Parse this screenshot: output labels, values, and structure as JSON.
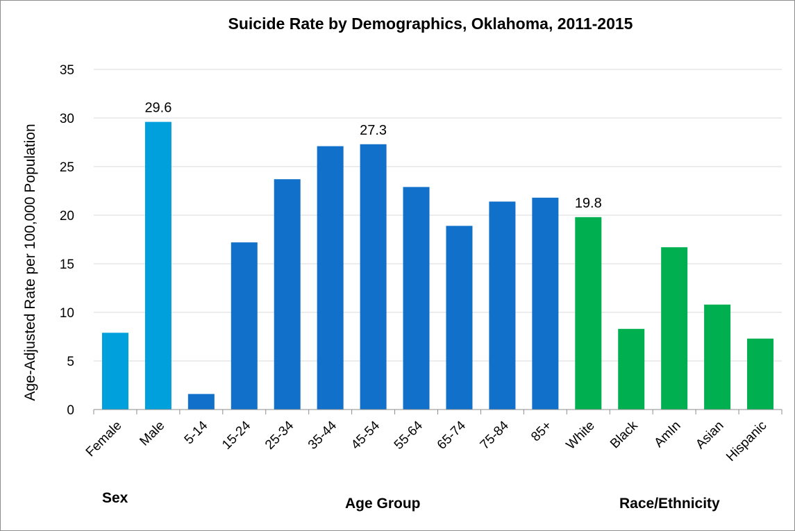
{
  "chart_data": {
    "type": "bar",
    "title": "Suicide Rate by Demographics, Oklahoma, 2011-2015",
    "ylabel": "Age-Adjusted Rate per 100,000 Population",
    "ylim": [
      0,
      35
    ],
    "yticks": [
      "0",
      "5",
      "10",
      "15",
      "20",
      "25",
      "30",
      "35"
    ],
    "grid": true,
    "categories": [
      "Female",
      "Male",
      "5-14",
      "15-24",
      "25-34",
      "35-44",
      "45-54",
      "55-64",
      "65-74",
      "75-84",
      "85+",
      "White",
      "Black",
      "AmIn",
      "Asian",
      "Hispanic"
    ],
    "values": [
      7.9,
      29.6,
      1.6,
      17.2,
      23.7,
      27.1,
      27.3,
      22.9,
      18.9,
      21.4,
      21.8,
      19.8,
      8.3,
      16.7,
      10.8,
      7.3
    ],
    "data_labels": [
      {
        "category": "Male",
        "text": "29.6"
      },
      {
        "category": "45-54",
        "text": "27.3"
      },
      {
        "category": "White",
        "text": "19.8"
      }
    ],
    "groups": [
      {
        "name": "Sex",
        "categories": [
          "Female",
          "Male"
        ],
        "color": "#00A0DC"
      },
      {
        "name": "Age Group",
        "categories": [
          "5-14",
          "15-24",
          "25-34",
          "35-44",
          "45-54",
          "55-64",
          "65-74",
          "75-84",
          "85+"
        ],
        "color": "#1170CA"
      },
      {
        "name": "Race/Ethnicity",
        "categories": [
          "White",
          "Black",
          "AmIn",
          "Asian",
          "Hispanic"
        ],
        "color": "#00B050"
      }
    ]
  }
}
